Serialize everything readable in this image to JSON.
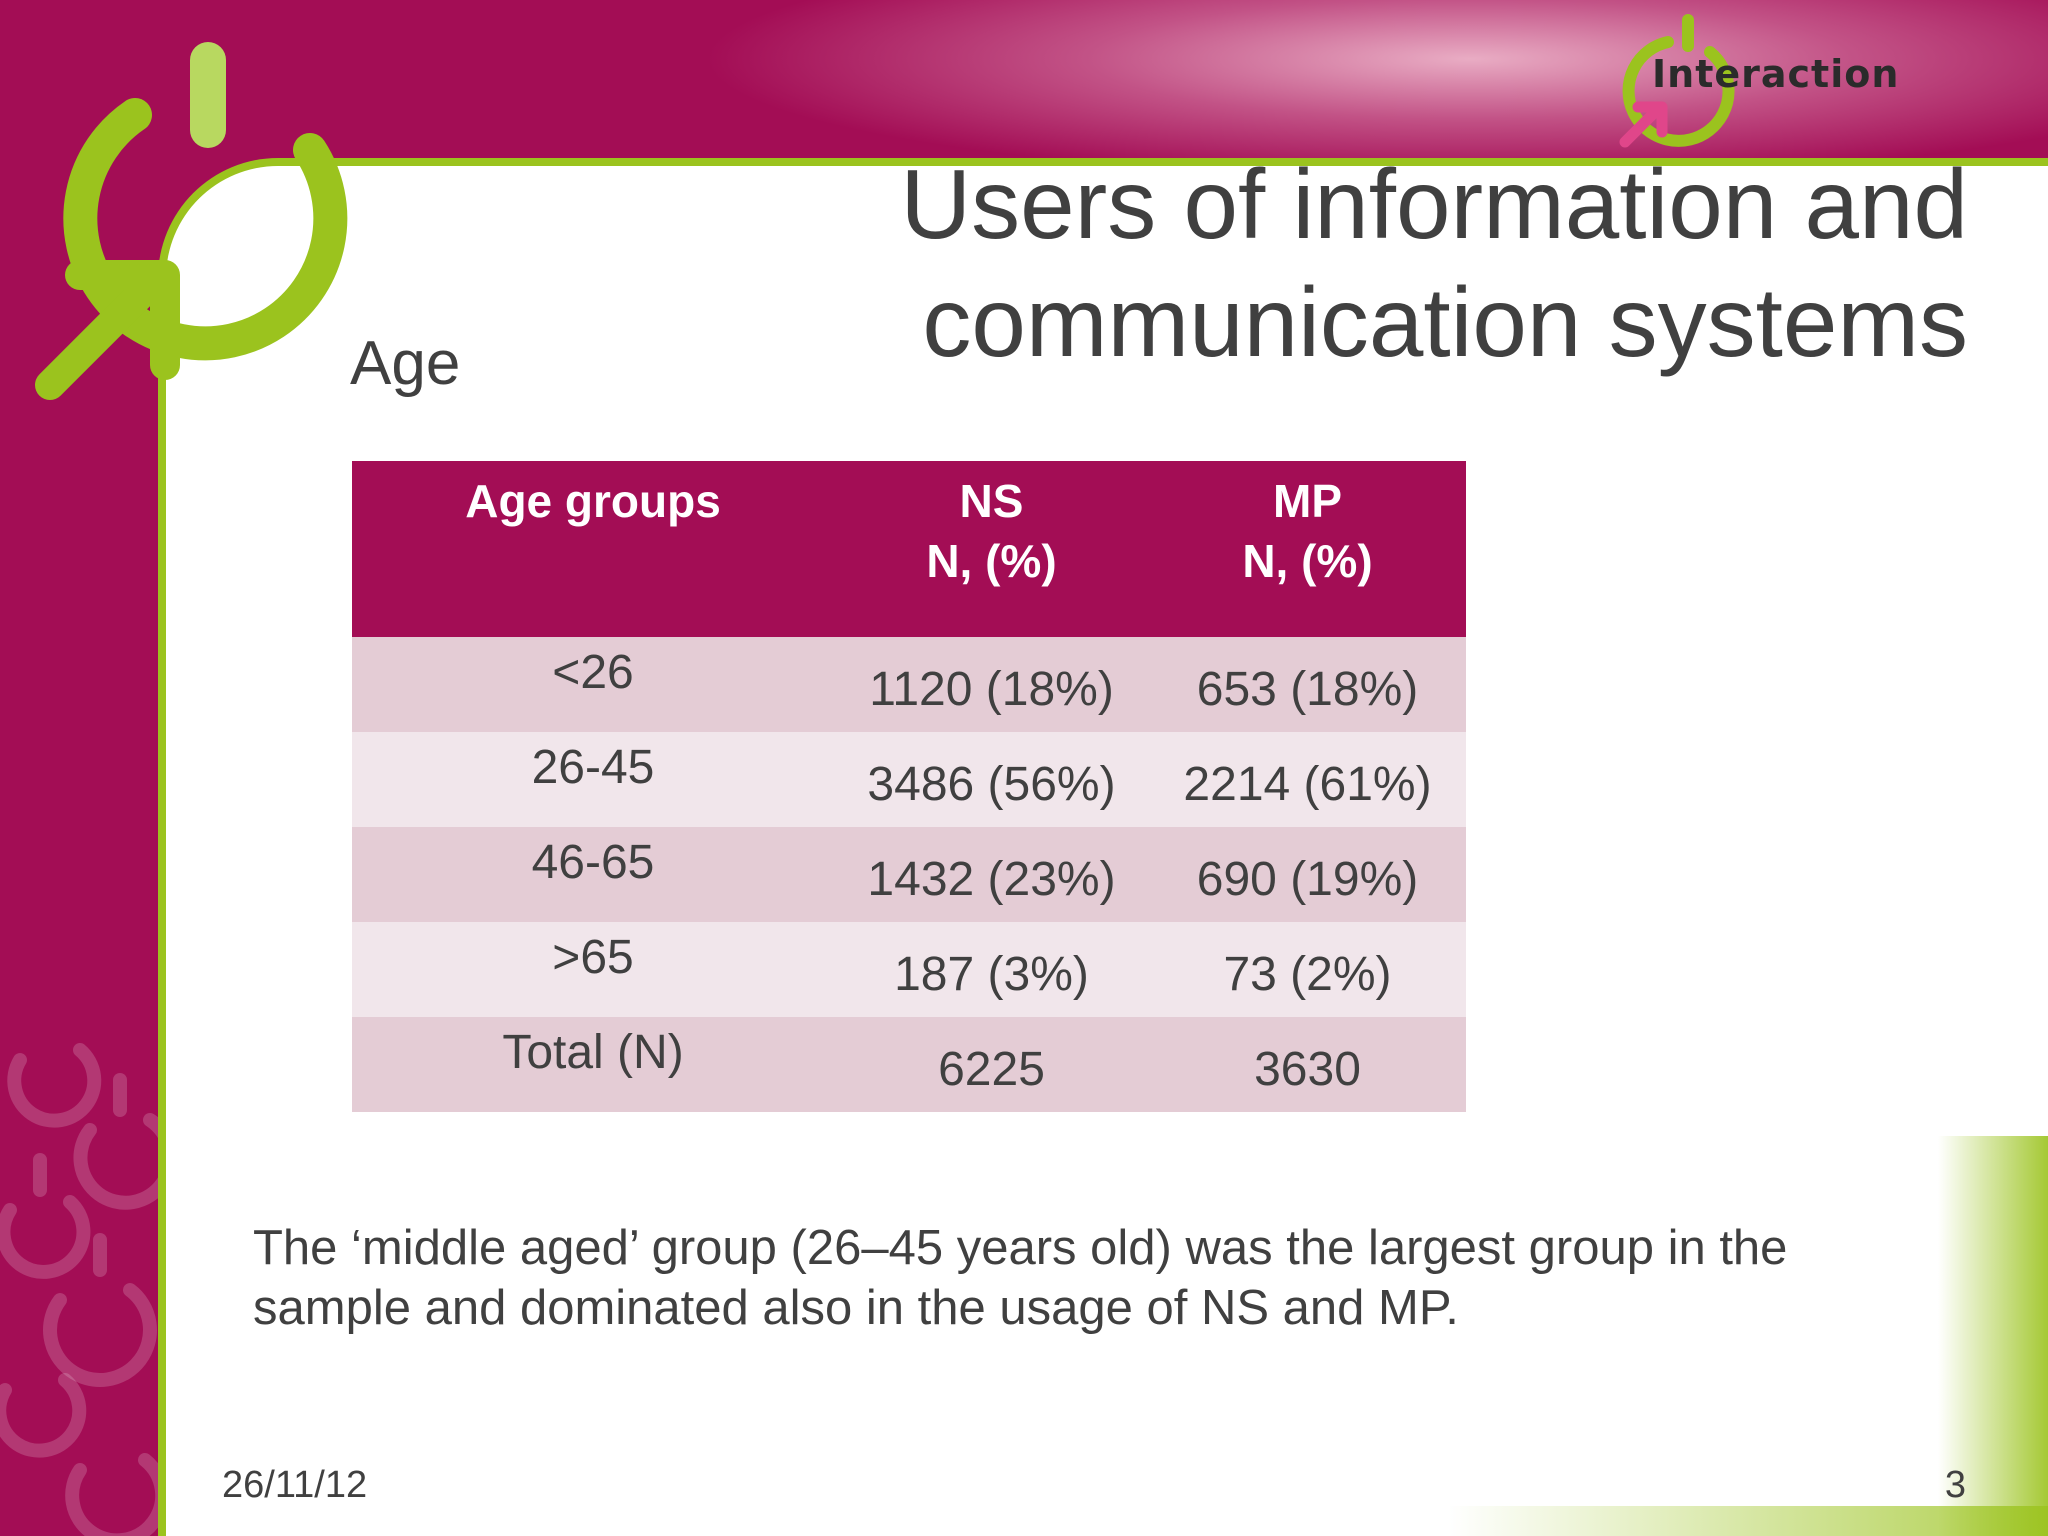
{
  "logo": {
    "text": "Interaction",
    "icon": "power-arrow-icon"
  },
  "title": "Users of information and communication systems",
  "subtitle": "Age",
  "table": {
    "headers": [
      "Age groups",
      "NS\nN, (%)",
      "MP\nN, (%)"
    ],
    "rows": [
      [
        "<26",
        "1120 (18%)",
        "653 (18%)"
      ],
      [
        "26-45",
        "3486 (56%)",
        "2214 (61%)"
      ],
      [
        "46-65",
        "1432 (23%)",
        "690 (19%)"
      ],
      [
        ">65",
        "187 (3%)",
        "73 (2%)"
      ],
      [
        "Total (N)",
        "6225",
        "3630"
      ]
    ]
  },
  "note": "The ‘middle aged’ group (26–45 years old) was the largest group in the sample and dominated also in the usage of NS and MP.",
  "footer": {
    "date": "26/11/12",
    "page_number": "3"
  },
  "colors": {
    "brand_magenta": "#a30d55",
    "accent_green": "#9bc31e",
    "text_gray": "#404040",
    "row_dark": "#e4ccd5",
    "row_light": "#f1e6eb"
  }
}
